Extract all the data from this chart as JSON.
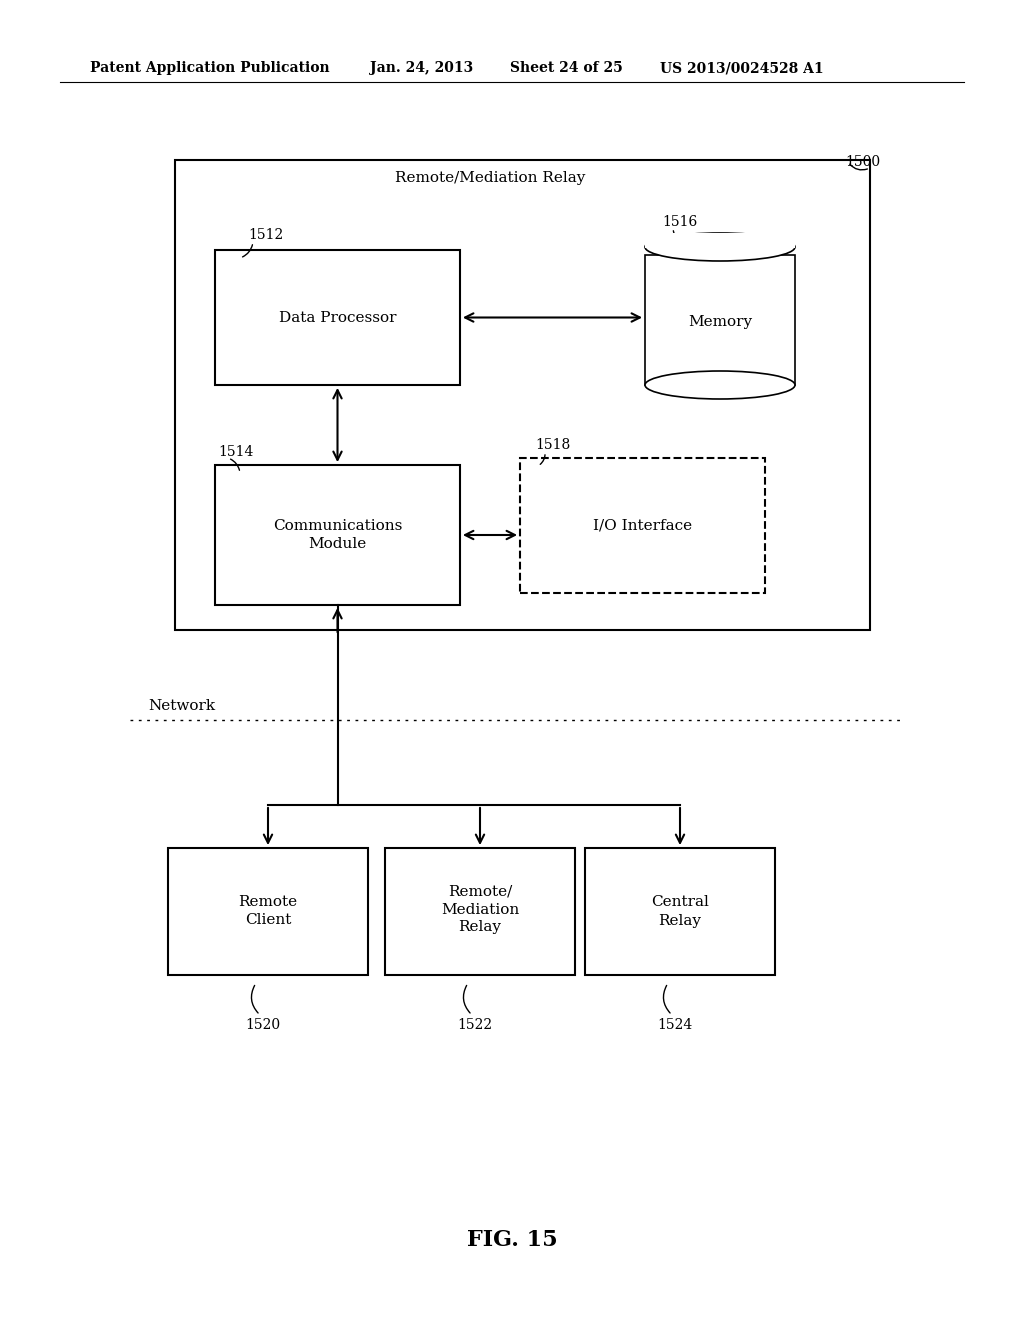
{
  "bg_color": "#ffffff",
  "header_text": "Patent Application Publication",
  "header_date": "Jan. 24, 2013",
  "header_sheet": "Sheet 24 of 25",
  "header_patent": "US 2013/0024528 A1",
  "fig_label": "FIG. 15",
  "outer_box_label": "Remote/Mediation Relay",
  "outer_box_label_num": "1500",
  "dp_box_label": "Data Processor",
  "dp_box_num": "1512",
  "mem_label": "Memory",
  "mem_num": "1516",
  "comm_box_label1": "Communications",
  "comm_box_label2": "Module",
  "comm_box_num": "1514",
  "io_box_label": "I/O Interface",
  "io_box_num": "1518",
  "net_label": "Network",
  "rc_label1": "Remote",
  "rc_label2": "Client",
  "rc_num": "1520",
  "rmr_label1": "Remote/",
  "rmr_label2": "Mediation",
  "rmr_label3": "Relay",
  "rmr_num": "1522",
  "cr_label1": "Central",
  "cr_label2": "Relay",
  "cr_num": "1524"
}
